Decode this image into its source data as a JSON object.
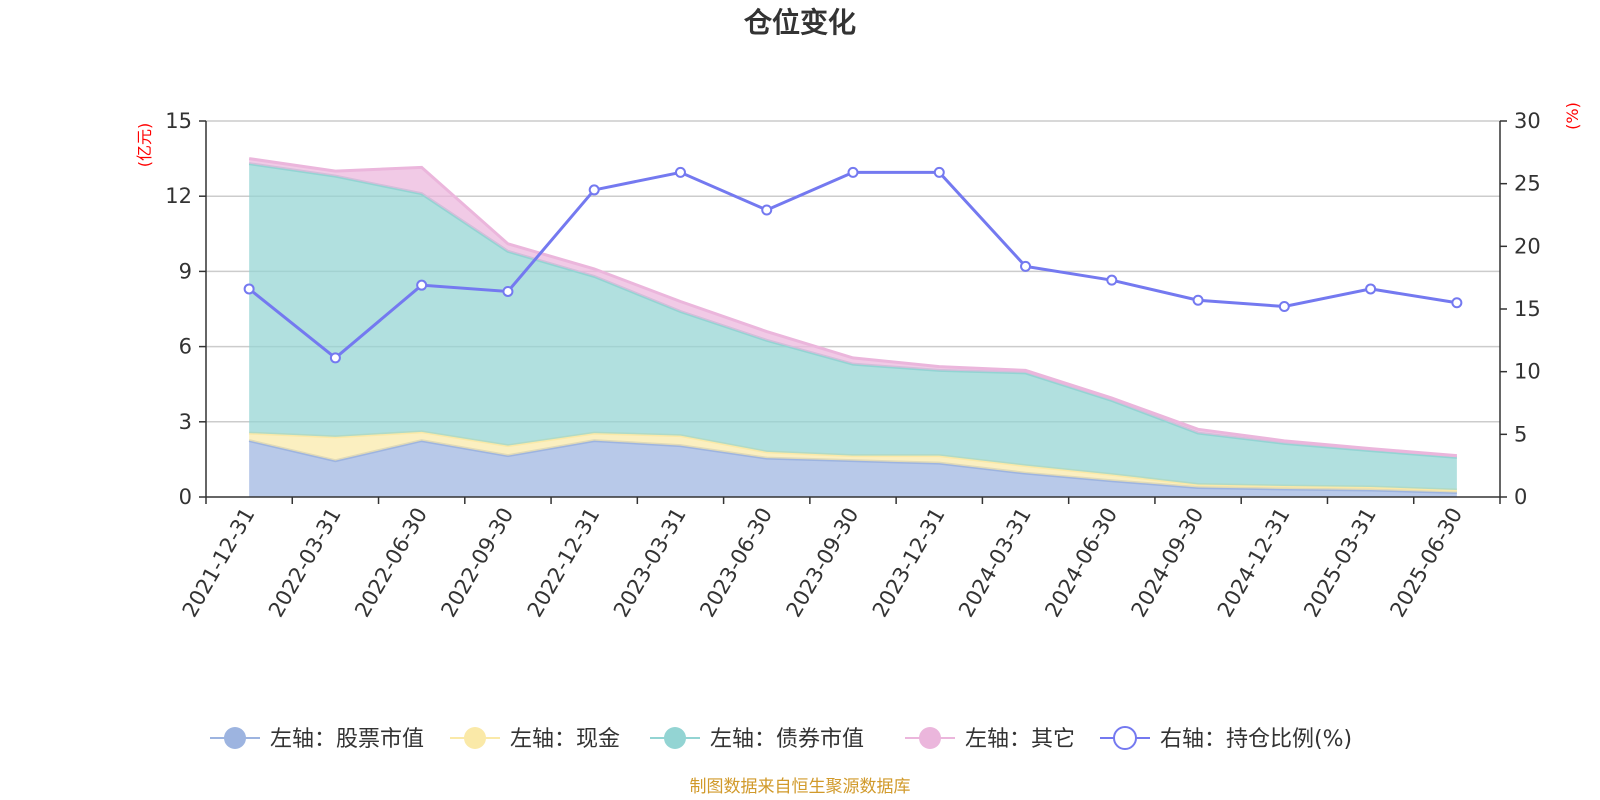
{
  "chart_data": {
    "type": "area",
    "title": "仓位变化",
    "left_axis_unit": "(亿元)",
    "right_axis_unit": "(%)",
    "left_ylim": [
      0,
      15
    ],
    "left_ticks": [
      "0",
      "3",
      "6",
      "9",
      "12",
      "15"
    ],
    "right_ylim": [
      0,
      30
    ],
    "right_ticks": [
      "0",
      "5",
      "10",
      "15",
      "20",
      "25",
      "30"
    ],
    "grid": true,
    "legend_position": "bottom",
    "categories": [
      "2021-12-31",
      "2022-03-31",
      "2022-06-30",
      "2022-09-30",
      "2022-12-31",
      "2023-03-31",
      "2023-06-30",
      "2023-09-30",
      "2023-12-31",
      "2024-03-31",
      "2024-06-30",
      "2024-09-30",
      "2024-12-31",
      "2025-03-31",
      "2025-06-30"
    ],
    "stacked_series": [
      {
        "name": "左轴：股票市值",
        "axis": "left",
        "color": "#9db4e0",
        "values": [
          2.25,
          1.45,
          2.25,
          1.65,
          2.25,
          2.05,
          1.55,
          1.45,
          1.35,
          0.95,
          0.65,
          0.38,
          0.32,
          0.28,
          0.18
        ]
      },
      {
        "name": "左轴：现金",
        "axis": "left",
        "color": "#fae9a8",
        "values": [
          0.3,
          0.95,
          0.35,
          0.4,
          0.3,
          0.4,
          0.25,
          0.2,
          0.3,
          0.3,
          0.25,
          0.12,
          0.12,
          0.12,
          0.1
        ]
      },
      {
        "name": "左轴：债券市值",
        "axis": "left",
        "color": "#93d4d3",
        "values": [
          10.75,
          10.4,
          9.5,
          7.75,
          6.25,
          4.95,
          4.45,
          3.65,
          3.4,
          3.7,
          2.95,
          2.05,
          1.7,
          1.45,
          1.3
        ]
      },
      {
        "name": "左轴：其它",
        "axis": "left",
        "color": "#ebb6dc",
        "values": [
          0.2,
          0.2,
          1.05,
          0.3,
          0.3,
          0.4,
          0.35,
          0.25,
          0.15,
          0.1,
          0.1,
          0.15,
          0.1,
          0.08,
          0.07
        ]
      }
    ],
    "line_series": [
      {
        "name": "右轴：持仓比例(%)",
        "axis": "right",
        "color": "#7479f0",
        "values": [
          16.6,
          11.1,
          16.9,
          16.4,
          24.5,
          25.9,
          22.9,
          25.9,
          25.9,
          18.4,
          17.3,
          15.7,
          15.2,
          16.6,
          15.5
        ]
      }
    ]
  },
  "source_text": "制图数据来自恒生聚源数据库",
  "source_color": "#d19a2b"
}
